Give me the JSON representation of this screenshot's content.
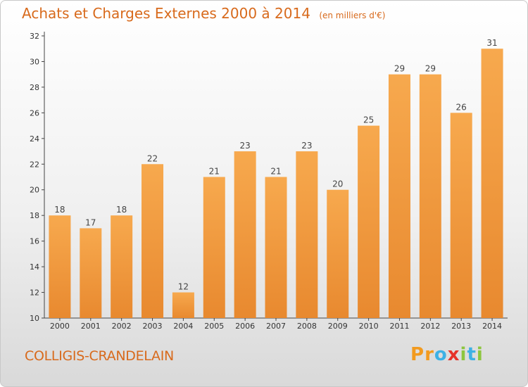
{
  "header": {
    "title": "Achats et Charges Externes 2000 à 2014",
    "subtitle": "(en milliers d'€)"
  },
  "footer": {
    "commune": "COLLIGIS-CRANDELAIN",
    "logo": {
      "letters": [
        "P",
        "r",
        "o",
        "x",
        "i",
        "t",
        "i"
      ],
      "colors": [
        "#f29a1e",
        "#f29a1e",
        "#3db1e5",
        "#e6332a",
        "#8dc63f",
        "#3db1e5",
        "#8dc63f"
      ]
    }
  },
  "chart_data": {
    "type": "bar",
    "title": "Achats et Charges Externes 2000 à 2014",
    "subtitle": "(en milliers d'€)",
    "categories": [
      "2000",
      "2001",
      "2002",
      "2003",
      "2004",
      "2005",
      "2006",
      "2007",
      "2008",
      "2009",
      "2010",
      "2011",
      "2012",
      "2013",
      "2014"
    ],
    "values": [
      18,
      17,
      18,
      22,
      12,
      21,
      23,
      21,
      23,
      20,
      25,
      29,
      29,
      26,
      31
    ],
    "ylim": [
      10,
      32
    ],
    "yticks": [
      10,
      12,
      14,
      16,
      18,
      20,
      22,
      24,
      26,
      28,
      30,
      32
    ],
    "grid": false,
    "bar_color": "#e8892f",
    "bar_color_light": "#f7a94e"
  }
}
